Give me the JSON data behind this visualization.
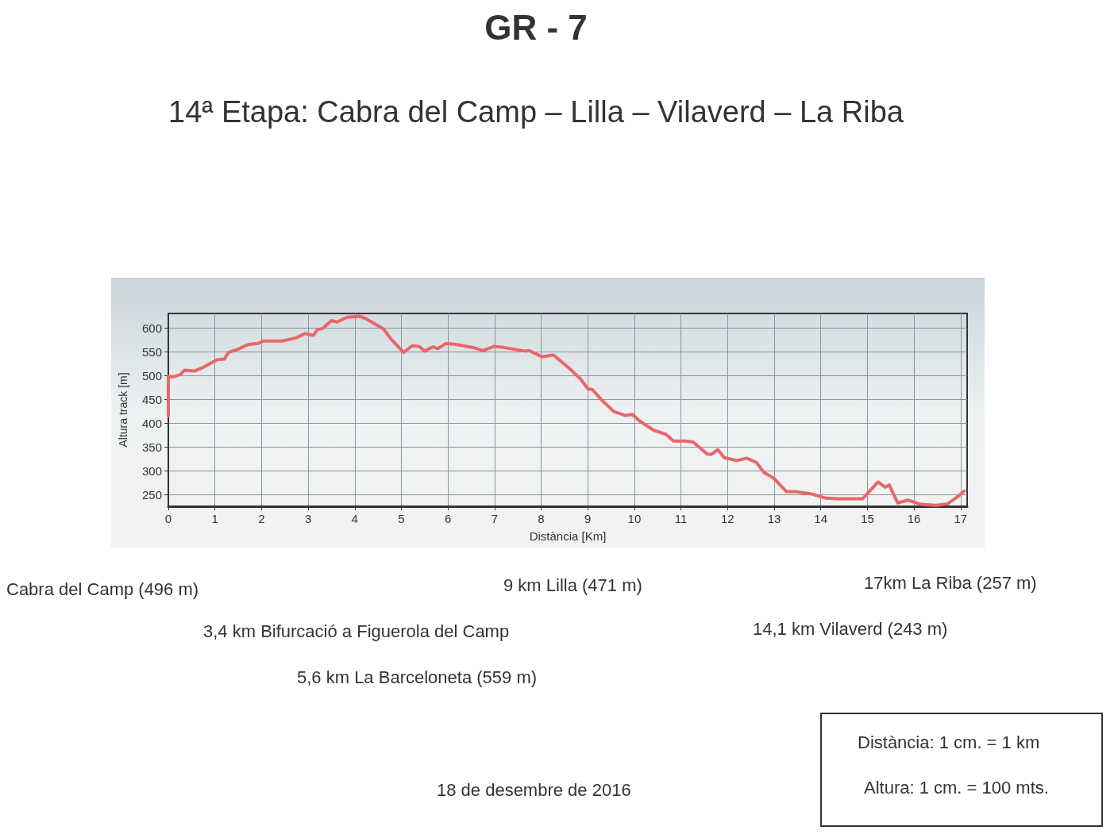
{
  "chart_data": {
    "type": "line",
    "title": "GR - 7",
    "subtitle": "14ª Etapa: Cabra del Camp – Lilla – Vilaverd – La Riba",
    "xlabel": "Distància [Km]",
    "ylabel": "Altura track [m]",
    "x": [
      0,
      0,
      0.11,
      0.26,
      0.35,
      0.56,
      0.75,
      1.05,
      1.2,
      1.29,
      1.47,
      1.72,
      1.93,
      2.02,
      2.44,
      2.75,
      2.93,
      3.11,
      3.2,
      3.32,
      3.5,
      3.62,
      3.84,
      4.11,
      4.26,
      4.62,
      4.78,
      5.05,
      5.23,
      5.38,
      5.5,
      5.68,
      5.78,
      5.96,
      6.17,
      6.56,
      6.75,
      6.99,
      7.17,
      7.65,
      7.74,
      8.02,
      8.26,
      8.6,
      8.84,
      9.0,
      9.1,
      9.3,
      9.56,
      9.8,
      9.96,
      10.1,
      10.41,
      10.68,
      10.84,
      11.08,
      11.26,
      11.56,
      11.65,
      11.79,
      11.93,
      12.2,
      12.41,
      12.62,
      12.78,
      12.99,
      13.26,
      13.44,
      13.8,
      14.11,
      14.41,
      14.9,
      15.02,
      15.23,
      15.38,
      15.47,
      15.65,
      15.87,
      16.14,
      16.47,
      16.72,
      16.96,
      17.08
    ],
    "series": [
      {
        "color": "#e8676a",
        "values": [
          415,
          497,
          497,
          502,
          511,
          509,
          517,
          533,
          534,
          548,
          554,
          565,
          567,
          572,
          572,
          579,
          588,
          584,
          596,
          599,
          615,
          612,
          622,
          624,
          618,
          597,
          576,
          548,
          562,
          561,
          551,
          560,
          556,
          567,
          565,
          558,
          552,
          561,
          559,
          551,
          552,
          539,
          543,
          515,
          493,
          472,
          470,
          448,
          424,
          416,
          418,
          405,
          385,
          376,
          362,
          362,
          360,
          335,
          334,
          344,
          327,
          321,
          326,
          317,
          296,
          284,
          256,
          256,
          251,
          242,
          241,
          241,
          254,
          276,
          265,
          270,
          232,
          238,
          229,
          227,
          230,
          247,
          257
        ]
      }
    ],
    "xlim": [
      0,
      17.14
    ],
    "ylim": [
      225,
      630
    ],
    "xticks": [
      0,
      1,
      2,
      3,
      4,
      5,
      6,
      7,
      8,
      9,
      10,
      11,
      12,
      13,
      14,
      15,
      16,
      17
    ],
    "yticks": [
      250,
      300,
      350,
      400,
      450,
      500,
      550,
      600
    ],
    "grid": true,
    "marker": "none",
    "line_style": "solid",
    "annotations": [
      "Cabra del Camp (496 m)",
      "9 km Lilla (471 m)",
      "17km La Riba (257 m)",
      "3,4 km Bifurcació a Figuerola del Camp",
      "14,1 km Vilaverd (243 m)",
      "5,6 km La Barceloneta (559 m)",
      "18 de desembre de 2016",
      "Distància: 1 cm. = 1 km",
      "Altura: 1 cm. = 100 mts."
    ]
  }
}
